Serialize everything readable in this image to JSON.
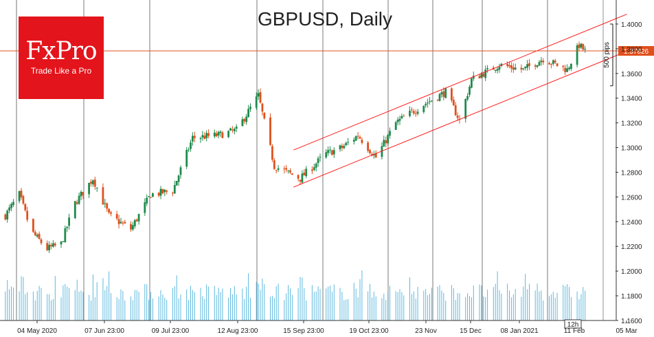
{
  "logo": {
    "main": "FxPro",
    "tagline": "Trade Like a Pro"
  },
  "colors": {
    "bull": "#1f8a4c",
    "bear": "#e0501c",
    "volume": "#5bb8de",
    "channel": "#ff1a1a",
    "price_line": "#e0501c",
    "grid": "#000000"
  },
  "chart_data": {
    "type": "candlestick",
    "title": "GBPUSD, Daily",
    "y_ticks": [
      "1.4000",
      "1.3800",
      "1.3600",
      "1.3400",
      "1.3200",
      "1.3000",
      "1.2800",
      "1.2600",
      "1.2400",
      "1.2200",
      "1.2000",
      "1.1800",
      "1.1600"
    ],
    "ylim": [
      1.16,
      1.41
    ],
    "x_ticks": [
      "04 May 2020",
      "07 Jun 23:00",
      "09 Jul 23:00",
      "12 Aug 23:00",
      "15 Sep 23:00",
      "19 Oct 23:00",
      "23 Nov",
      "15 Dec",
      "08 Jan 2021",
      "11 Feb",
      "05 Mar"
    ],
    "current_price": "1.37826",
    "last_bar_label": "12h",
    "annotation": {
      "text": "500 pips",
      "from": 1.35,
      "to": 1.4
    },
    "channel": {
      "upper": {
        "from": [
          "15 Sep",
          1.298
        ],
        "to": [
          "05 Mar",
          1.408
        ]
      },
      "lower": {
        "from": [
          "15 Sep",
          1.268
        ],
        "to": [
          "05 Mar",
          1.378
        ]
      }
    },
    "close_path": [
      {
        "date": "2020-04-27",
        "close": 1.245
      },
      {
        "date": "2020-05-04",
        "close": 1.262
      },
      {
        "date": "2020-05-10",
        "close": 1.232
      },
      {
        "date": "2020-05-18",
        "close": 1.218
      },
      {
        "date": "2020-05-25",
        "close": 1.222
      },
      {
        "date": "2020-06-01",
        "close": 1.255
      },
      {
        "date": "2020-06-10",
        "close": 1.275
      },
      {
        "date": "2020-06-18",
        "close": 1.245
      },
      {
        "date": "2020-06-29",
        "close": 1.234
      },
      {
        "date": "2020-07-09",
        "close": 1.262
      },
      {
        "date": "2020-07-20",
        "close": 1.265
      },
      {
        "date": "2020-07-30",
        "close": 1.308
      },
      {
        "date": "2020-08-12",
        "close": 1.31
      },
      {
        "date": "2020-08-21",
        "close": 1.314
      },
      {
        "date": "2020-09-01",
        "close": 1.342
      },
      {
        "date": "2020-09-09",
        "close": 1.285
      },
      {
        "date": "2020-09-22",
        "close": 1.275
      },
      {
        "date": "2020-10-05",
        "close": 1.295
      },
      {
        "date": "2020-10-13",
        "close": 1.3
      },
      {
        "date": "2020-10-21",
        "close": 1.31
      },
      {
        "date": "2020-10-30",
        "close": 1.292
      },
      {
        "date": "2020-11-09",
        "close": 1.32
      },
      {
        "date": "2020-11-23",
        "close": 1.335
      },
      {
        "date": "2020-12-04",
        "close": 1.345
      },
      {
        "date": "2020-12-11",
        "close": 1.322
      },
      {
        "date": "2020-12-17",
        "close": 1.355
      },
      {
        "date": "2020-12-31",
        "close": 1.367
      },
      {
        "date": "2021-01-12",
        "close": 1.363
      },
      {
        "date": "2021-01-22",
        "close": 1.372
      },
      {
        "date": "2021-02-03",
        "close": 1.363
      },
      {
        "date": "2021-02-09",
        "close": 1.383
      },
      {
        "date": "2021-02-12",
        "close": 1.378
      }
    ],
    "volume_range": [
      1.17,
      1.205
    ]
  }
}
